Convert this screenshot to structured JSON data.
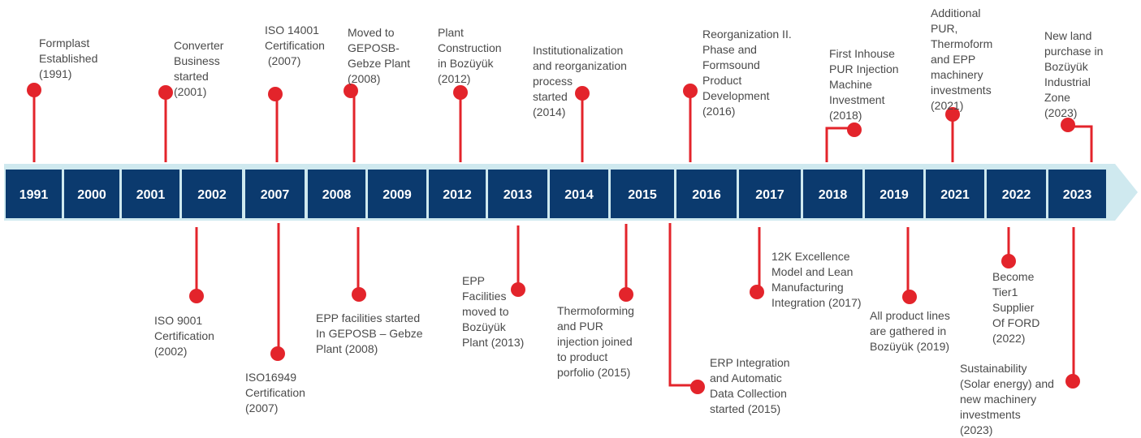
{
  "colors": {
    "year_box": "#0b3a6e",
    "arrow_band": "#cfe9ef",
    "connector": "#e3242b",
    "text": "#4a4a4a",
    "year_text": "#ffffff"
  },
  "years": [
    "1991",
    "2000",
    "2001",
    "2002",
    "2007",
    "2008",
    "2009",
    "2012",
    "2013",
    "2014",
    "2015",
    "2016",
    "2017",
    "2018",
    "2019",
    "2021",
    "2022",
    "2023"
  ],
  "events": [
    {
      "id": "formplast-established",
      "year": "1991",
      "position": "above",
      "text": "Formplast\nEstablished\n(1991)"
    },
    {
      "id": "converter-business",
      "year": "2001",
      "position": "above",
      "text": "Converter\nBusiness\nstarted\n(2001)"
    },
    {
      "id": "iso-9001",
      "year": "2002",
      "position": "below",
      "text": "ISO 9001\nCertification\n(2002)"
    },
    {
      "id": "iso-14001",
      "year": "2007",
      "position": "above",
      "text": "ISO 14001\nCertification\n (2007)"
    },
    {
      "id": "iso-16949",
      "year": "2007",
      "position": "below",
      "text": "ISO16949\nCertification\n(2007)"
    },
    {
      "id": "moved-gebze",
      "year": "2008",
      "position": "above",
      "text": "Moved to\nGEPOSB-\nGebze Plant\n(2008)"
    },
    {
      "id": "epp-gebze",
      "year": "2008",
      "position": "below",
      "text": "EPP facilities started\nIn GEPOSB – Gebze\nPlant (2008)"
    },
    {
      "id": "plant-construction",
      "year": "2012",
      "position": "above",
      "text": "Plant\nConstruction\nin Bozüyük\n(2012)"
    },
    {
      "id": "epp-moved",
      "year": "2013",
      "position": "below",
      "text": "EPP\nFacilities\nmoved to\nBozüyük\nPlant (2013)"
    },
    {
      "id": "institutionalization",
      "year": "2014",
      "position": "above",
      "text": "Institutionalization\nand reorganization\nprocess\nstarted\n(2014)"
    },
    {
      "id": "thermoforming-pur",
      "year": "2015",
      "position": "below",
      "text": "Thermoforming\nand PUR\ninjection joined\nto product\nporfolio (2015)"
    },
    {
      "id": "erp-integration",
      "year": "2015",
      "position": "below",
      "text": "ERP Integration\nand Automatic\nData Collection\nstarted (2015)"
    },
    {
      "id": "reorganization-2",
      "year": "2016",
      "position": "above",
      "text": "Reorganization II.\nPhase and\nFormsound\nProduct\nDevelopment\n(2016)"
    },
    {
      "id": "12k-excellence",
      "year": "2017",
      "position": "below",
      "text": "12K Excellence\nModel and Lean\nManufacturing\nIntegration (2017)"
    },
    {
      "id": "first-pur-machine",
      "year": "2018",
      "position": "above",
      "text": "First Inhouse\nPUR Injection\nMachine\nInvestment\n(2018)"
    },
    {
      "id": "product-lines-gathered",
      "year": "2019",
      "position": "below",
      "text": "All product lines\nare gathered in\nBozüyük (2019)"
    },
    {
      "id": "additional-investments",
      "year": "2021",
      "position": "above",
      "text": "Additional\nPUR,\nThermoform\nand EPP\nmachinery\ninvestments\n(2021)"
    },
    {
      "id": "tier1-ford",
      "year": "2022",
      "position": "below",
      "text": "Become\nTier1\nSupplier\nOf FORD\n(2022)"
    },
    {
      "id": "new-land",
      "year": "2023",
      "position": "above",
      "text": "New land\npurchase in\nBozüyük\nIndustrial\nZone\n(2023)"
    },
    {
      "id": "sustainability",
      "year": "2023",
      "position": "below",
      "text": "Sustainability\n(Solar energy) and\nnew machinery\ninvestments\n(2023)"
    }
  ]
}
